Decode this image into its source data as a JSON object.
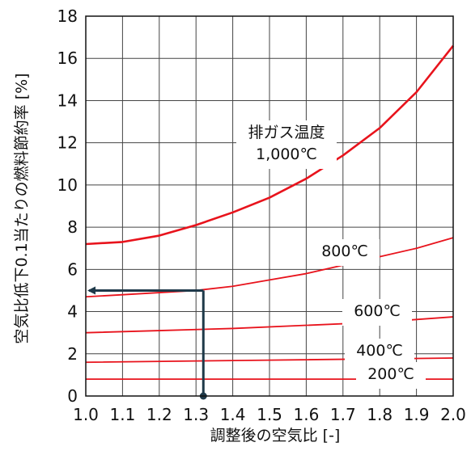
{
  "chart_data": {
    "type": "line",
    "title": "",
    "xlabel": "調整後の空気比 [-]",
    "ylabel": "空気比低下0.1当たりの燃料節約率 [%]",
    "xlim": [
      1.0,
      2.0
    ],
    "ylim": [
      0,
      18
    ],
    "xticks": [
      "1.0",
      "1.1",
      "1.2",
      "1.3",
      "1.4",
      "1.5",
      "1.6",
      "1.7",
      "1.8",
      "1.9",
      "2.0"
    ],
    "yticks": [
      "0",
      "2",
      "4",
      "6",
      "8",
      "10",
      "12",
      "14",
      "16",
      "18"
    ],
    "grid": true,
    "line_color": "#e8131c",
    "annotation_color": "#1f3a4a",
    "series": [
      {
        "name": "1,000℃",
        "label_lines": [
          "排ガス温度",
          "1,000℃"
        ],
        "x": [
          1.0,
          1.1,
          1.2,
          1.3,
          1.4,
          1.5,
          1.6,
          1.7,
          1.8,
          1.9,
          2.0
        ],
        "y": [
          7.2,
          7.3,
          7.6,
          8.1,
          8.7,
          9.4,
          10.3,
          11.4,
          12.7,
          14.4,
          16.6
        ]
      },
      {
        "name": "800℃",
        "label_lines": [
          "800℃"
        ],
        "x": [
          1.0,
          1.1,
          1.2,
          1.3,
          1.4,
          1.5,
          1.6,
          1.7,
          1.8,
          1.9,
          2.0
        ],
        "y": [
          4.7,
          4.8,
          4.9,
          5.0,
          5.2,
          5.5,
          5.8,
          6.2,
          6.6,
          7.0,
          7.5
        ]
      },
      {
        "name": "600℃",
        "label_lines": [
          "600℃"
        ],
        "x": [
          1.0,
          1.2,
          1.4,
          1.6,
          1.8,
          2.0
        ],
        "y": [
          3.0,
          3.1,
          3.2,
          3.35,
          3.5,
          3.75
        ]
      },
      {
        "name": "400℃",
        "label_lines": [
          "400℃"
        ],
        "x": [
          1.0,
          1.5,
          2.0
        ],
        "y": [
          1.6,
          1.7,
          1.8
        ]
      },
      {
        "name": "200℃",
        "label_lines": [
          "200℃"
        ],
        "x": [
          1.0,
          2.0
        ],
        "y": [
          0.8,
          0.8
        ]
      }
    ],
    "annotation": {
      "x": 1.32,
      "y": 5.0
    }
  }
}
